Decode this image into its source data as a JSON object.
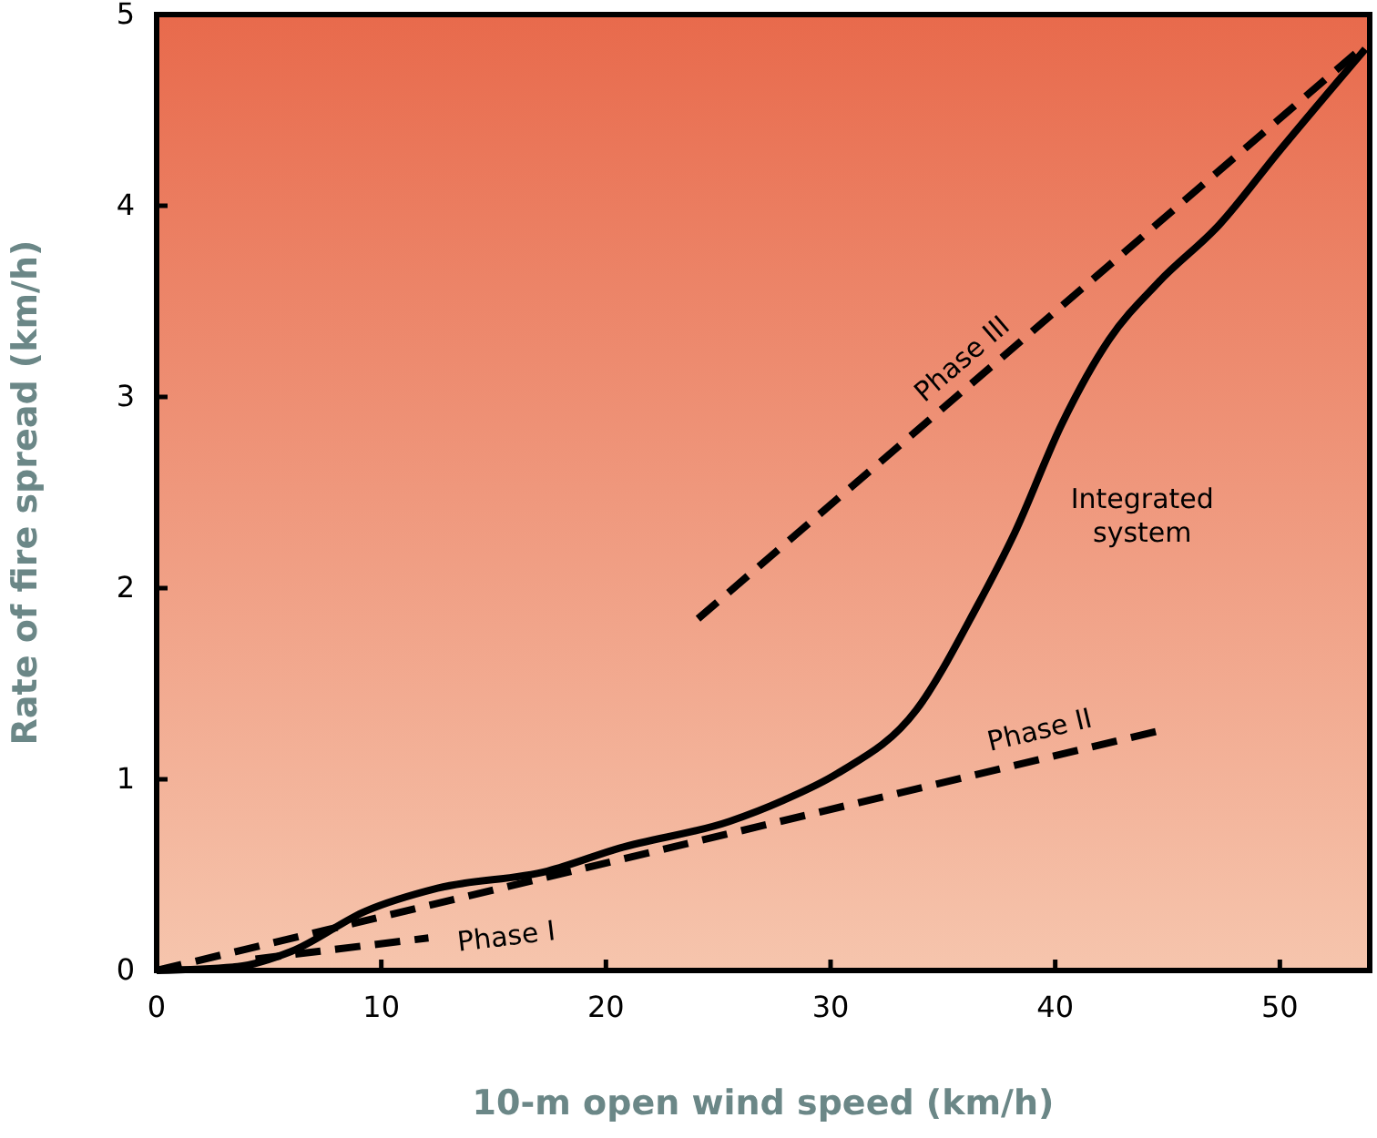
{
  "chart_data": {
    "type": "line",
    "xlabel": "10-m open wind speed (km/h)",
    "ylabel": "Rate of fire spread (km/h)",
    "xlim": [
      0,
      54
    ],
    "ylim": [
      0,
      5
    ],
    "xticks": [
      0,
      10,
      20,
      30,
      40,
      50
    ],
    "yticks": [
      0,
      1,
      2,
      3,
      4,
      5
    ],
    "grid": false,
    "series": [
      {
        "name": "Integrated system",
        "color": "#000000",
        "line_style": "solid",
        "x": [
          0,
          3.6,
          6,
          9.3,
          12.5,
          17.4,
          20.6,
          25.5,
          27.9,
          30.3,
          33.8,
          36.5,
          38.2,
          40.3,
          42.4,
          44.6,
          47.3,
          50,
          53.8
        ],
        "values": [
          0,
          0.02,
          0.1,
          0.31,
          0.43,
          0.52,
          0.64,
          0.78,
          0.89,
          1.03,
          1.36,
          1.9,
          2.29,
          2.86,
          3.3,
          3.6,
          3.9,
          4.29,
          4.82
        ]
      },
      {
        "name": "Phase I",
        "color": "#000000",
        "line_style": "dashed",
        "x": [
          4.4,
          12.1
        ],
        "values": [
          0.06,
          0.17
        ]
      },
      {
        "name": "Phase II",
        "color": "#000000",
        "line_style": "dashed",
        "x": [
          0,
          44.5
        ],
        "values": [
          0,
          1.25
        ]
      },
      {
        "name": "Phase III",
        "color": "#000000",
        "line_style": "dashed",
        "x": [
          24.1,
          53.8
        ],
        "values": [
          1.84,
          4.84
        ]
      }
    ]
  }
}
